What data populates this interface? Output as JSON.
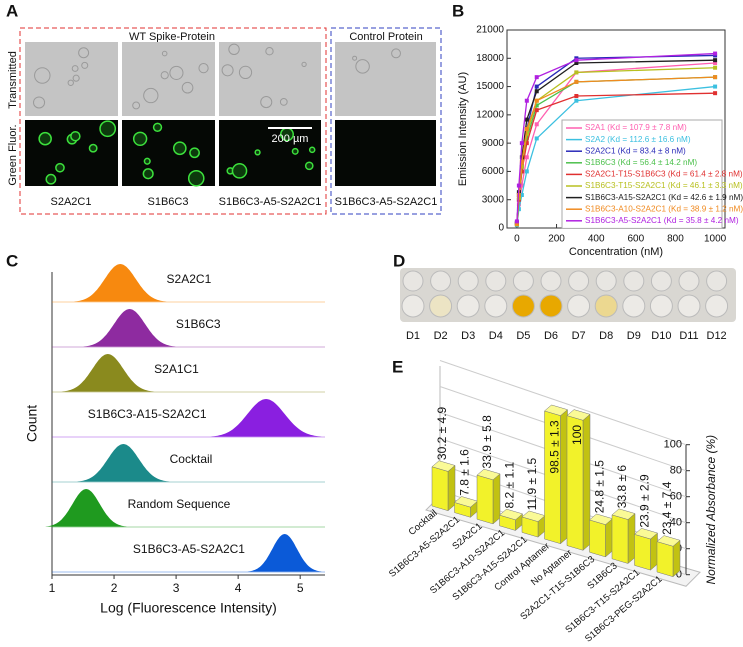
{
  "panel_labels": [
    "A",
    "B",
    "C",
    "D",
    "E"
  ],
  "panel_a": {
    "groups": [
      "WT Spike-Protein",
      "Control Protein"
    ],
    "row_labels": [
      "Transmitted",
      "Green Fluor."
    ],
    "scale_bar": "200 µm",
    "samples": [
      "S2A2C1",
      "S1B6C3",
      "S1B6C3-A5-S2A2C1",
      "S1B6C3-A5-S2A2C1"
    ]
  },
  "panel_d": {
    "wells": [
      "D1",
      "D2",
      "D3",
      "D4",
      "D5",
      "D6",
      "D7",
      "D8",
      "D9",
      "D10",
      "D11",
      "D12"
    ]
  },
  "chart_data": [
    {
      "type": "line",
      "xlabel": "Concentration (nM)",
      "ylabel": "Emission Intensity (AU)",
      "x": [
        0,
        10,
        25,
        50,
        100,
        300,
        1000
      ],
      "xlim": [
        -50,
        1050
      ],
      "xticks": [
        0,
        200,
        400,
        600,
        800,
        1000
      ],
      "ylim": [
        0,
        21000
      ],
      "yticks": [
        0,
        3000,
        6000,
        9000,
        12000,
        15000,
        18000,
        21000
      ],
      "legend": "lower right",
      "series": [
        {
          "name": "S2A1 (Kd = 107.9 ± 7.8 nM)",
          "color": "#ff5fb0",
          "values": [
            500,
            2500,
            4500,
            7500,
            11000,
            16500,
            17500
          ]
        },
        {
          "name": "S2A2 (Kd = 112.6 ± 16.6 nM)",
          "color": "#3cc0e0",
          "values": [
            300,
            2000,
            3500,
            6000,
            9500,
            13500,
            15000
          ]
        },
        {
          "name": "S2A2C1 (Kd = 83.4 ± 8 nM)",
          "color": "#2a2ab8",
          "values": [
            600,
            3500,
            6500,
            10500,
            15000,
            18000,
            18300
          ]
        },
        {
          "name": "S1B6C3 (Kd = 56.4 ± 14.2 nM)",
          "color": "#4cc04c",
          "values": [
            400,
            3000,
            6000,
            9500,
            13000,
            15500,
            16000
          ]
        },
        {
          "name": "S2A2C1-T15-S1B6C3 (Kd = 61.4 ± 2.8 nM)",
          "color": "#e03030",
          "values": [
            500,
            3000,
            6000,
            9000,
            12500,
            14000,
            14300
          ]
        },
        {
          "name": "S1B6C3-T15-S2A2C1 (Kd = 46.1 ± 3.3 nM)",
          "color": "#b8c020",
          "values": [
            400,
            3200,
            6500,
            10000,
            13500,
            16500,
            17000
          ]
        },
        {
          "name": "S1B6C3-A15-S2A2C1 (Kd = 42.6 ± 1.9 nM)",
          "color": "#202020",
          "values": [
            500,
            3800,
            7500,
            11500,
            14500,
            17500,
            17800
          ]
        },
        {
          "name": "S1B6C3-A10-S2A2C1 (Kd = 38.9 ± 1.2 nM)",
          "color": "#f08a20",
          "values": [
            400,
            3500,
            7000,
            10500,
            13500,
            15500,
            16000
          ]
        },
        {
          "name": "S1B6C3-A5-S2A2C1 (Kd = 35.8 ± 4.2 nM)",
          "color": "#b020e0",
          "values": [
            700,
            4500,
            9000,
            13500,
            16000,
            17800,
            18500
          ]
        }
      ]
    },
    {
      "type": "ridgeline",
      "xlabel": "Log (Fluorescence Intensity)",
      "ylabel": "Count",
      "xlim": [
        1,
        5.4
      ],
      "xticks": [
        1,
        2,
        3,
        4,
        5
      ],
      "series": [
        {
          "name": "S2A2C1",
          "color": "#f7890f",
          "mean": 2.1,
          "sd": 0.25
        },
        {
          "name": "S1B6C3",
          "color": "#8e2ba0",
          "mean": 2.25,
          "sd": 0.25
        },
        {
          "name": "S2A1C1",
          "color": "#8a8a1e",
          "mean": 1.9,
          "sd": 0.25
        },
        {
          "name": "S1B6C3-A15-S2A2C1",
          "color": "#8a1fe0",
          "mean": 4.45,
          "sd": 0.3
        },
        {
          "name": "Cocktail",
          "color": "#1b8a8a",
          "mean": 2.15,
          "sd": 0.25
        },
        {
          "name": "Random Sequence",
          "color": "#1f9a1f",
          "mean": 1.55,
          "sd": 0.22
        },
        {
          "name": "S1B6C3-A5-S2A2C1",
          "color": "#0b5ad8",
          "mean": 4.75,
          "sd": 0.2
        }
      ]
    },
    {
      "type": "bar3d",
      "ylabel": "Normalized Absorbance (%)",
      "color": "#f2f22a",
      "categories": [
        "Cocktail",
        "S1B6C3-A5-S2A2C1",
        "S2A2C1",
        "S1B6C3-A10-S2A2C1",
        "S1B6C3-A15-S2A2C1",
        "Control Aptamer",
        "No Aptamer",
        "S2A2C1-T15-S1B6C3",
        "S1B6C3",
        "S1B6C3-T15-S2A2C1",
        "S1B6C3-PEG-S2A2C1"
      ],
      "values": [
        30.2,
        7.8,
        33.9,
        8.2,
        11.9,
        98.5,
        100,
        24.8,
        33.8,
        23.9,
        23.4
      ],
      "errors": [
        4.9,
        1.6,
        5.8,
        1.1,
        1.5,
        1.3,
        null,
        1.5,
        6,
        2.9,
        7.4
      ],
      "value_labels": [
        "30.2 ± 4.9",
        "7.8 ± 1.6",
        "33.9 ± 5.8",
        "8.2 ± 1.1",
        "11.9 ± 1.5",
        "98.5 ± 1.3",
        "100",
        "24.8 ± 1.5",
        "33.8 ± 6",
        "23.9 ± 2.9",
        "23.4 ± 7.4"
      ],
      "ylim": [
        0,
        100
      ],
      "yticks": [
        0,
        20,
        40,
        60,
        80,
        100
      ]
    }
  ]
}
